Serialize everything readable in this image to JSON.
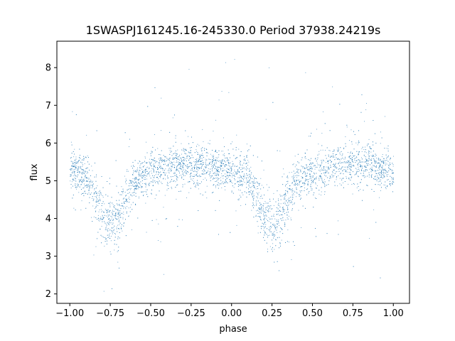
{
  "chart_data": {
    "type": "scatter",
    "title": "1SWASPJ161245.16-245330.0 Period 37938.24219s",
    "xlabel": "phase",
    "ylabel": "flux",
    "xlim": [
      -1.08,
      1.1
    ],
    "ylim": [
      1.75,
      8.7
    ],
    "xticks": [
      -1.0,
      -0.75,
      -0.5,
      -0.25,
      0.0,
      0.25,
      0.5,
      0.75,
      1.0
    ],
    "xtick_labels": [
      "−1.00",
      "−0.75",
      "−0.50",
      "−0.25",
      "0.00",
      "0.25",
      "0.50",
      "0.75",
      "1.00"
    ],
    "yticks": [
      2,
      3,
      4,
      5,
      6,
      7,
      8
    ],
    "ytick_labels": [
      "2",
      "3",
      "4",
      "5",
      "6",
      "7",
      "8"
    ],
    "grid": false,
    "marker_color": "#1f77b4",
    "series": [
      {
        "x": [
          -1.0,
          -0.95,
          -0.9,
          -0.85,
          -0.8,
          -0.75,
          -0.7,
          -0.65,
          -0.6,
          -0.55,
          -0.5,
          -0.45,
          -0.4,
          -0.35,
          -0.3,
          -0.25,
          -0.2,
          -0.15,
          -0.1,
          -0.05,
          0.0,
          0.05,
          0.1,
          0.15,
          0.2,
          0.25,
          0.3,
          0.35,
          0.4,
          0.45,
          0.5,
          0.55,
          0.6,
          0.65,
          0.7,
          0.75,
          0.8,
          0.85,
          0.9,
          0.95,
          1.0
        ],
        "y": [
          5.3,
          5.2,
          5.1,
          4.6,
          4.0,
          3.8,
          4.0,
          4.6,
          5.0,
          5.1,
          5.2,
          5.3,
          5.35,
          5.4,
          5.4,
          5.4,
          5.35,
          5.4,
          5.35,
          5.3,
          5.3,
          5.2,
          5.1,
          4.6,
          4.0,
          3.8,
          4.0,
          4.6,
          5.0,
          5.1,
          5.2,
          5.3,
          5.35,
          5.4,
          5.4,
          5.4,
          5.35,
          5.4,
          5.35,
          5.3,
          5.3
        ]
      }
    ]
  }
}
